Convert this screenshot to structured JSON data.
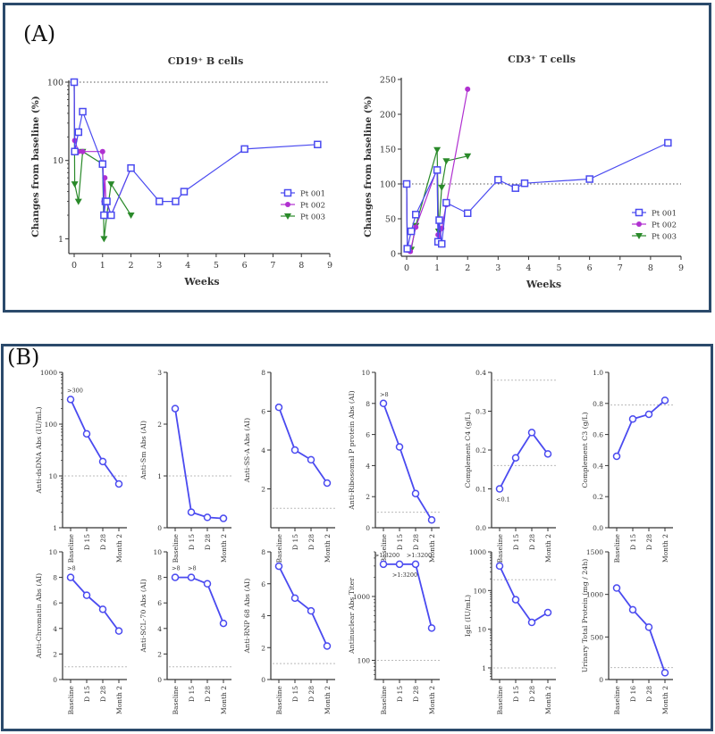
{
  "panels": {
    "a_label": "(A)",
    "b_label": "(B)"
  },
  "chart_data": [
    {
      "id": "cd19",
      "type": "line",
      "title": "CD19⁺ B cells",
      "xlabel": "Weeks",
      "ylabel": "Changes from baseline (%)",
      "yscale": "log",
      "ylim": [
        0.7,
        100
      ],
      "yticks": [
        1,
        10,
        100
      ],
      "xlim": [
        0,
        9
      ],
      "xticks": [
        0,
        1,
        2,
        3,
        4,
        5,
        6,
        7,
        8,
        9
      ],
      "reference_line": 100,
      "legend": "right",
      "series": [
        {
          "name": "Pt 001",
          "color": "#4a4af0",
          "marker": "square-open",
          "x": [
            0,
            0.02,
            0.15,
            0.3,
            1.0,
            1.05,
            1.1,
            1.15,
            1.3,
            2.0,
            3.0,
            3.57,
            3.87,
            6.0,
            8.57
          ],
          "y": [
            100,
            13,
            23,
            42,
            9,
            2,
            3,
            3,
            2,
            8,
            3,
            3,
            4,
            14,
            16
          ]
        },
        {
          "name": "Pt 002",
          "color": "#b030d0",
          "marker": "diamond-filled",
          "x": [
            0,
            0.02,
            0.15,
            0.3,
            1.0,
            1.05,
            1.08,
            1.12,
            1.3,
            2.0
          ],
          "y": [
            100,
            18,
            13,
            13,
            13,
            3,
            6,
            3,
            2,
            8
          ]
        },
        {
          "name": "Pt 003",
          "color": "#2a8a2a",
          "marker": "triangle-down-filled",
          "x": [
            0,
            0.02,
            0.15,
            0.3,
            1.0,
            1.05,
            1.15,
            1.3,
            2.0
          ],
          "y": [
            100,
            5,
            3,
            13,
            9,
            1,
            2,
            5,
            2
          ]
        }
      ]
    },
    {
      "id": "cd3",
      "type": "line",
      "title": "CD3⁺ T cells",
      "xlabel": "Weeks",
      "ylabel": "Changes from baseline (%)",
      "yscale": "linear",
      "ylim": [
        0,
        250
      ],
      "yticks": [
        0,
        50,
        100,
        150,
        200,
        250
      ],
      "xlim": [
        0,
        9
      ],
      "xticks": [
        0,
        1,
        2,
        3,
        4,
        5,
        6,
        7,
        8,
        9
      ],
      "reference_line": 100,
      "legend": "right",
      "series": [
        {
          "name": "Pt 001",
          "color": "#4a4af0",
          "marker": "square-open",
          "x": [
            0,
            0.02,
            0.15,
            0.3,
            1.0,
            1.03,
            1.07,
            1.15,
            1.3,
            2.0,
            3.0,
            3.57,
            3.87,
            6.0,
            8.57
          ],
          "y": [
            100,
            7,
            32,
            56,
            120,
            17,
            48,
            14,
            73,
            58,
            106,
            94,
            101,
            107,
            159
          ]
        },
        {
          "name": "Pt 002",
          "color": "#b030d0",
          "marker": "diamond-filled",
          "x": [
            0,
            0.02,
            0.12,
            0.3,
            1.0,
            1.03,
            1.08,
            1.15,
            1.3,
            2.0
          ],
          "y": [
            100,
            5,
            3,
            38,
            122,
            27,
            20,
            36,
            70,
            236
          ]
        },
        {
          "name": "Pt 003",
          "color": "#2a8a2a",
          "marker": "triangle-down-filled",
          "x": [
            0,
            0.02,
            0.15,
            0.3,
            1.0,
            1.05,
            1.15,
            1.3,
            2.0
          ],
          "y": [
            100,
            8,
            6,
            40,
            149,
            32,
            95,
            133,
            140
          ]
        }
      ]
    },
    {
      "id": "dsdna",
      "type": "line",
      "ylabel": "Anti-dsDNA Abs (IU/mL)",
      "yscale": "log",
      "ylim": [
        1,
        1000
      ],
      "yticks": [
        1,
        10,
        100,
        1000
      ],
      "ytick_labels": [
        "1",
        "10",
        "100",
        "1000"
      ],
      "categories": [
        "Baseline",
        "D 15",
        "D 28",
        "Month 2"
      ],
      "values": [
        300,
        65,
        19,
        7
      ],
      "reference_lines": [
        10
      ],
      "annotations": [
        {
          "index": 0,
          "text": ">300",
          "pos": "above"
        }
      ]
    },
    {
      "id": "sm",
      "type": "line",
      "ylabel": "Anti-Sm Abs (AI)",
      "yscale": "linear",
      "ylim": [
        0,
        3
      ],
      "yticks": [
        0,
        1,
        2,
        3
      ],
      "ytick_labels": [
        "0",
        "1",
        "2",
        "3"
      ],
      "categories": [
        "Baseline",
        "D 15",
        "D 28",
        "Month 2"
      ],
      "values": [
        2.3,
        0.3,
        0.2,
        0.18
      ],
      "reference_lines": [
        1
      ],
      "annotations": []
    },
    {
      "id": "ssa",
      "type": "line",
      "ylabel": "Anti-SS-A Abs (AI)",
      "yscale": "linear",
      "ylim": [
        0,
        8
      ],
      "yticks": [
        2,
        4,
        6,
        8
      ],
      "ytick_labels": [
        "2",
        "4",
        "6",
        "8"
      ],
      "categories": [
        "Baseline",
        "D 15",
        "D 28",
        "Month 2"
      ],
      "values": [
        6.2,
        4.0,
        3.5,
        2.3
      ],
      "reference_lines": [
        1
      ],
      "annotations": []
    },
    {
      "id": "ribo",
      "type": "line",
      "ylabel": "Anti-Ribosomal P protein Abs (AI)",
      "yscale": "linear",
      "ylim": [
        0,
        10
      ],
      "yticks": [
        0,
        2,
        4,
        6,
        8,
        10
      ],
      "ytick_labels": [
        "0",
        "2",
        "4",
        "6",
        "8",
        "10"
      ],
      "categories": [
        "Baseline",
        "D 15",
        "D 28",
        "Month 2"
      ],
      "values": [
        8,
        5.2,
        2.2,
        0.5
      ],
      "reference_lines": [
        1
      ],
      "annotations": [
        {
          "index": 0,
          "text": ">8",
          "pos": "above"
        }
      ]
    },
    {
      "id": "c4",
      "type": "line",
      "ylabel": "Complement C4 (g/L)",
      "yscale": "linear",
      "ylim": [
        0,
        0.4
      ],
      "yticks": [
        0,
        0.1,
        0.2,
        0.3,
        0.4
      ],
      "ytick_labels": [
        "0.0",
        "0.1",
        "0.2",
        "0.3",
        "0.4"
      ],
      "categories": [
        "Baseline",
        "D 15",
        "D 28",
        "Month 2"
      ],
      "values": [
        0.1,
        0.18,
        0.245,
        0.19
      ],
      "reference_lines": [
        0.16,
        0.38
      ],
      "annotations": [
        {
          "index": 0,
          "text": "<0.1",
          "pos": "below"
        }
      ]
    },
    {
      "id": "c3",
      "type": "line",
      "ylabel": "Complement C3 (g/L)",
      "yscale": "linear",
      "ylim": [
        0,
        1.0
      ],
      "yticks": [
        0,
        0.2,
        0.4,
        0.6,
        0.8,
        1.0
      ],
      "ytick_labels": [
        "0.0",
        "0.2",
        "0.4",
        "0.6",
        "0.8",
        "1.0"
      ],
      "categories": [
        "Baseline",
        "D 15",
        "D 28",
        "Month 2"
      ],
      "values": [
        0.46,
        0.7,
        0.73,
        0.82
      ],
      "reference_lines": [
        0.79
      ],
      "annotations": []
    },
    {
      "id": "chromatin",
      "type": "line",
      "ylabel": "Anti-Chromatin Abs (AI)",
      "yscale": "linear",
      "ylim": [
        0,
        10
      ],
      "yticks": [
        0,
        2,
        4,
        6,
        8,
        10
      ],
      "ytick_labels": [
        "0",
        "2",
        "4",
        "6",
        "8",
        "10"
      ],
      "categories": [
        "Baseline",
        "D 15",
        "D 28",
        "Month 2"
      ],
      "values": [
        8,
        6.6,
        5.5,
        3.8
      ],
      "reference_lines": [
        1
      ],
      "annotations": [
        {
          "index": 0,
          "text": ">8",
          "pos": "above"
        }
      ]
    },
    {
      "id": "scl70",
      "type": "line",
      "ylabel": "Anti-SCL-70 Abs (AI)",
      "yscale": "linear",
      "ylim": [
        0,
        10
      ],
      "yticks": [
        0,
        2,
        4,
        6,
        8,
        10
      ],
      "ytick_labels": [
        "0",
        "2",
        "4",
        "6",
        "8",
        "10"
      ],
      "categories": [
        "Baseline",
        "D 15",
        "D 28",
        "Month 2"
      ],
      "values": [
        8,
        8,
        7.5,
        4.4
      ],
      "reference_lines": [
        1
      ],
      "annotations": [
        {
          "index": 0,
          "text": ">8",
          "pos": "above"
        },
        {
          "index": 1,
          "text": ">8",
          "pos": "above"
        }
      ]
    },
    {
      "id": "rnp68",
      "type": "line",
      "ylabel": "Anti-RNP 68 Abs (AI)",
      "yscale": "linear",
      "ylim": [
        0,
        8
      ],
      "yticks": [
        0,
        2,
        4,
        6,
        8
      ],
      "ytick_labels": [
        "0",
        "2",
        "4",
        "6",
        "8"
      ],
      "categories": [
        "Baseline",
        "D 15",
        "D 28",
        "Month 2"
      ],
      "values": [
        7.1,
        5.1,
        4.3,
        2.1
      ],
      "reference_lines": [
        1
      ],
      "annotations": []
    },
    {
      "id": "ana",
      "type": "line",
      "ylabel": "Antinuclear Abs Titer",
      "yscale": "log",
      "ylim": [
        50,
        5000
      ],
      "yticks": [
        100,
        1000
      ],
      "ytick_labels": [
        "100",
        "1000"
      ],
      "categories": [
        "Baseline",
        "D 15",
        "D 28",
        "Month 2"
      ],
      "values": [
        3200,
        3200,
        3200,
        320
      ],
      "reference_lines": [
        100
      ],
      "annotations": [
        {
          "index": 0,
          "text": ">1:3200",
          "pos": "above"
        },
        {
          "index": 1,
          "text": ">1:3200",
          "pos": "below"
        },
        {
          "index": 2,
          "text": ">1:3200",
          "pos": "above"
        }
      ]
    },
    {
      "id": "ige",
      "type": "line",
      "ylabel": "IgE (IU/mL)",
      "yscale": "log",
      "ylim": [
        0.5,
        1000
      ],
      "yticks": [
        1,
        10,
        100,
        1000
      ],
      "ytick_labels": [
        "1",
        "10",
        "100",
        "1000"
      ],
      "categories": [
        "Baseline",
        "D 15",
        "D 28",
        "Month 2"
      ],
      "values": [
        430,
        58,
        15,
        27
      ],
      "reference_lines": [
        1,
        190
      ],
      "annotations": []
    },
    {
      "id": "protein",
      "type": "line",
      "ylabel": "Urinary Total Protein (mg / 24h)",
      "yscale": "linear",
      "ylim": [
        0,
        1500
      ],
      "yticks": [
        0,
        500,
        1000,
        1500
      ],
      "ytick_labels": [
        "0",
        "500",
        "1000",
        "1500"
      ],
      "categories": [
        "Baseline",
        "D 16",
        "D 28",
        "Month 2"
      ],
      "values": [
        1075,
        820,
        615,
        80
      ],
      "reference_lines": [
        140
      ],
      "annotations": []
    }
  ],
  "style": {
    "line_color": "#4a4af0",
    "ref_line_color": "#bbbbbb",
    "axis_color": "#333333"
  }
}
